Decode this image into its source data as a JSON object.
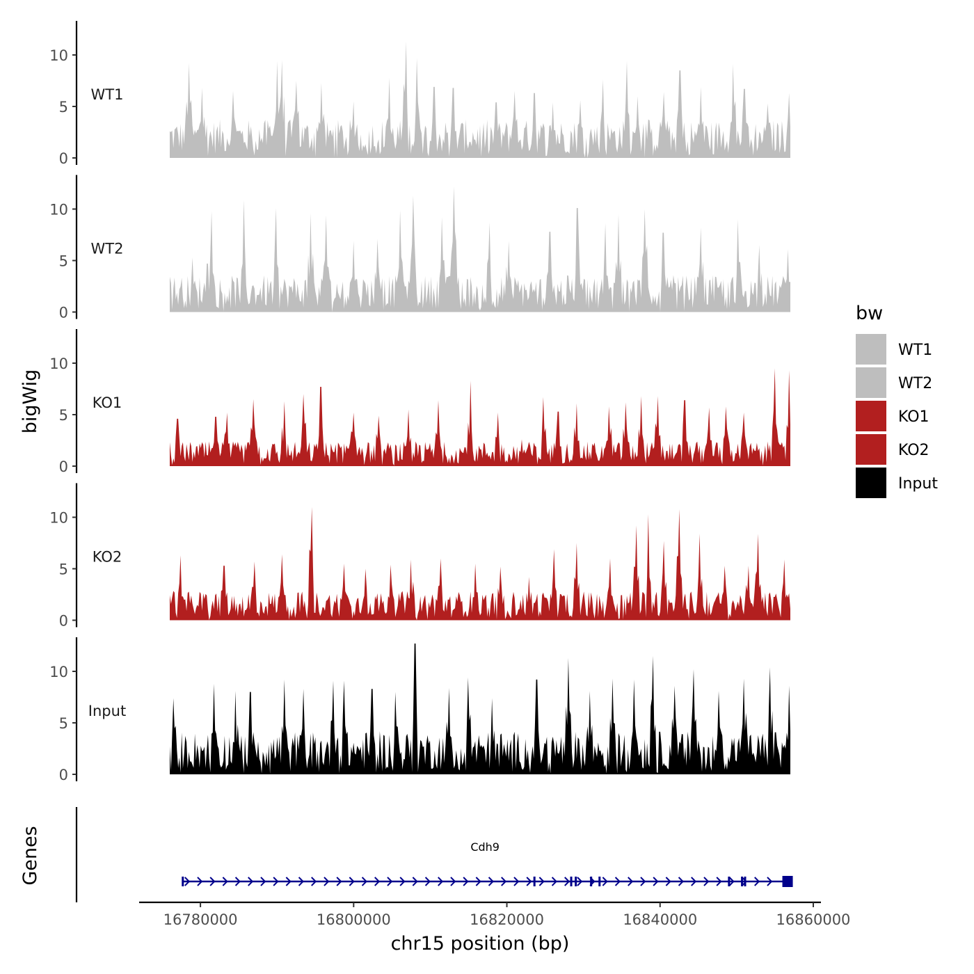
{
  "chart_data": {
    "type": "area",
    "ylabel": "bigWig",
    "xlabel": "chr15 position (bp)",
    "xlim": [
      16772000,
      16861000
    ],
    "data_range": [
      16776000,
      16857000
    ],
    "ylim": [
      0,
      13
    ],
    "yticks": [
      0,
      5,
      10
    ],
    "xticks": [
      16780000,
      16800000,
      16820000,
      16840000,
      16860000
    ],
    "xtick_labels": [
      "16780000",
      "16800000",
      "16820000",
      "16840000",
      "16860000"
    ],
    "legend": {
      "title": "bw",
      "position": "right",
      "entries": [
        {
          "label": "WT1",
          "color": "#bebebe"
        },
        {
          "label": "WT2",
          "color": "#bebebe"
        },
        {
          "label": "KO1",
          "color": "#b21f1f"
        },
        {
          "label": "KO2",
          "color": "#b21f1f"
        },
        {
          "label": "Input",
          "color": "#000000"
        }
      ]
    },
    "series": [
      {
        "name": "WT1",
        "color": "#bebebe",
        "baseline": 2.5,
        "peaks": [
          [
            16778500,
            9.2
          ],
          [
            16780200,
            6.8
          ],
          [
            16784300,
            6.5
          ],
          [
            16790000,
            9.4
          ],
          [
            16790700,
            9.5
          ],
          [
            16792500,
            7.5
          ],
          [
            16795800,
            7.3
          ],
          [
            16800000,
            5.5
          ],
          [
            16804600,
            7.8
          ],
          [
            16806800,
            11.3
          ],
          [
            16808300,
            9.7
          ],
          [
            16810500,
            6.9
          ],
          [
            16813000,
            6.8
          ],
          [
            16818600,
            5.4
          ],
          [
            16821000,
            6.5
          ],
          [
            16823600,
            6.3
          ],
          [
            16826000,
            5.4
          ],
          [
            16829600,
            5.6
          ],
          [
            16832500,
            7.6
          ],
          [
            16835700,
            9.4
          ],
          [
            16837000,
            6.0
          ],
          [
            16840500,
            6.4
          ],
          [
            16842600,
            8.5
          ],
          [
            16845300,
            6.9
          ],
          [
            16849500,
            9.1
          ],
          [
            16851000,
            6.7
          ],
          [
            16854000,
            5.3
          ],
          [
            16856800,
            6.3
          ]
        ]
      },
      {
        "name": "WT2",
        "color": "#bebebe",
        "baseline": 2.4,
        "peaks": [
          [
            16779000,
            5.3
          ],
          [
            16780900,
            4.7
          ],
          [
            16781500,
            9.8
          ],
          [
            16785600,
            10.9
          ],
          [
            16789900,
            10.1
          ],
          [
            16794400,
            9.6
          ],
          [
            16796400,
            9.4
          ],
          [
            16800000,
            6.9
          ],
          [
            16803100,
            7.1
          ],
          [
            16806100,
            9.9
          ],
          [
            16807800,
            11.3
          ],
          [
            16811500,
            9.2
          ],
          [
            16813100,
            12.2
          ],
          [
            16817700,
            8.7
          ],
          [
            16820200,
            6.9
          ],
          [
            16825600,
            7.8
          ],
          [
            16829200,
            10.1
          ],
          [
            16832900,
            8.6
          ],
          [
            16834600,
            9.5
          ],
          [
            16838000,
            10.0
          ],
          [
            16840400,
            7.7
          ],
          [
            16845300,
            8.2
          ],
          [
            16850200,
            9.0
          ],
          [
            16853000,
            6.5
          ],
          [
            16856700,
            6.1
          ]
        ]
      },
      {
        "name": "KO1",
        "color": "#b21f1f",
        "baseline": 1.6,
        "peaks": [
          [
            16777000,
            4.6
          ],
          [
            16782000,
            4.8
          ],
          [
            16783500,
            5.2
          ],
          [
            16786900,
            6.5
          ],
          [
            16790900,
            6.3
          ],
          [
            16793500,
            7.0
          ],
          [
            16795700,
            7.7
          ],
          [
            16800000,
            5.2
          ],
          [
            16803200,
            4.9
          ],
          [
            16807200,
            5.5
          ],
          [
            16811000,
            6.4
          ],
          [
            16815200,
            8.3
          ],
          [
            16818800,
            5.2
          ],
          [
            16821900,
            2.6
          ],
          [
            16824800,
            6.7
          ],
          [
            16826700,
            5.3
          ],
          [
            16829100,
            6.1
          ],
          [
            16833300,
            5.8
          ],
          [
            16835500,
            6.2
          ],
          [
            16837500,
            6.8
          ],
          [
            16839700,
            6.8
          ],
          [
            16843200,
            6.4
          ],
          [
            16846400,
            5.7
          ],
          [
            16848600,
            5.8
          ],
          [
            16850900,
            5.2
          ],
          [
            16855000,
            9.5
          ],
          [
            16856800,
            9.3
          ]
        ]
      },
      {
        "name": "KO2",
        "color": "#b21f1f",
        "baseline": 1.9,
        "peaks": [
          [
            16777400,
            6.3
          ],
          [
            16783100,
            5.3
          ],
          [
            16787000,
            5.7
          ],
          [
            16790700,
            6.4
          ],
          [
            16794500,
            11.0
          ],
          [
            16798800,
            5.5
          ],
          [
            16801500,
            5.0
          ],
          [
            16804800,
            5.4
          ],
          [
            16807500,
            5.9
          ],
          [
            16811300,
            6.0
          ],
          [
            16815900,
            5.5
          ],
          [
            16819100,
            5.2
          ],
          [
            16822900,
            4.2
          ],
          [
            16826200,
            6.9
          ],
          [
            16829100,
            7.5
          ],
          [
            16833500,
            6.0
          ],
          [
            16836900,
            9.2
          ],
          [
            16838500,
            10.3
          ],
          [
            16840500,
            7.7
          ],
          [
            16842500,
            10.8
          ],
          [
            16845200,
            8.4
          ],
          [
            16848400,
            5.3
          ],
          [
            16851500,
            5.3
          ],
          [
            16852800,
            8.4
          ],
          [
            16856200,
            5.9
          ]
        ]
      },
      {
        "name": "Input",
        "color": "#000000",
        "baseline": 2.8,
        "peaks": [
          [
            16776500,
            7.4
          ],
          [
            16781800,
            8.8
          ],
          [
            16784600,
            8.1
          ],
          [
            16786500,
            8.0
          ],
          [
            16790900,
            9.2
          ],
          [
            16793400,
            8.3
          ],
          [
            16797300,
            9.1
          ],
          [
            16798800,
            9.1
          ],
          [
            16802400,
            8.3
          ],
          [
            16805500,
            8.0
          ],
          [
            16808000,
            12.7
          ],
          [
            16812400,
            8.4
          ],
          [
            16815000,
            9.4
          ],
          [
            16818100,
            7.4
          ],
          [
            16823900,
            9.2
          ],
          [
            16828000,
            11.3
          ],
          [
            16830800,
            8.1
          ],
          [
            16833800,
            9.3
          ],
          [
            16836600,
            9.2
          ],
          [
            16839100,
            11.5
          ],
          [
            16841900,
            8.6
          ],
          [
            16844400,
            10.2
          ],
          [
            16847700,
            8.1
          ],
          [
            16850900,
            9.3
          ],
          [
            16854400,
            10.4
          ],
          [
            16856800,
            8.6
          ]
        ]
      }
    ],
    "genes_track": {
      "label": "Genes",
      "genes": [
        {
          "name": "Cdh9",
          "start": 16777700,
          "end": 16856600,
          "strand": "+",
          "color": "#00008b"
        }
      ]
    }
  }
}
